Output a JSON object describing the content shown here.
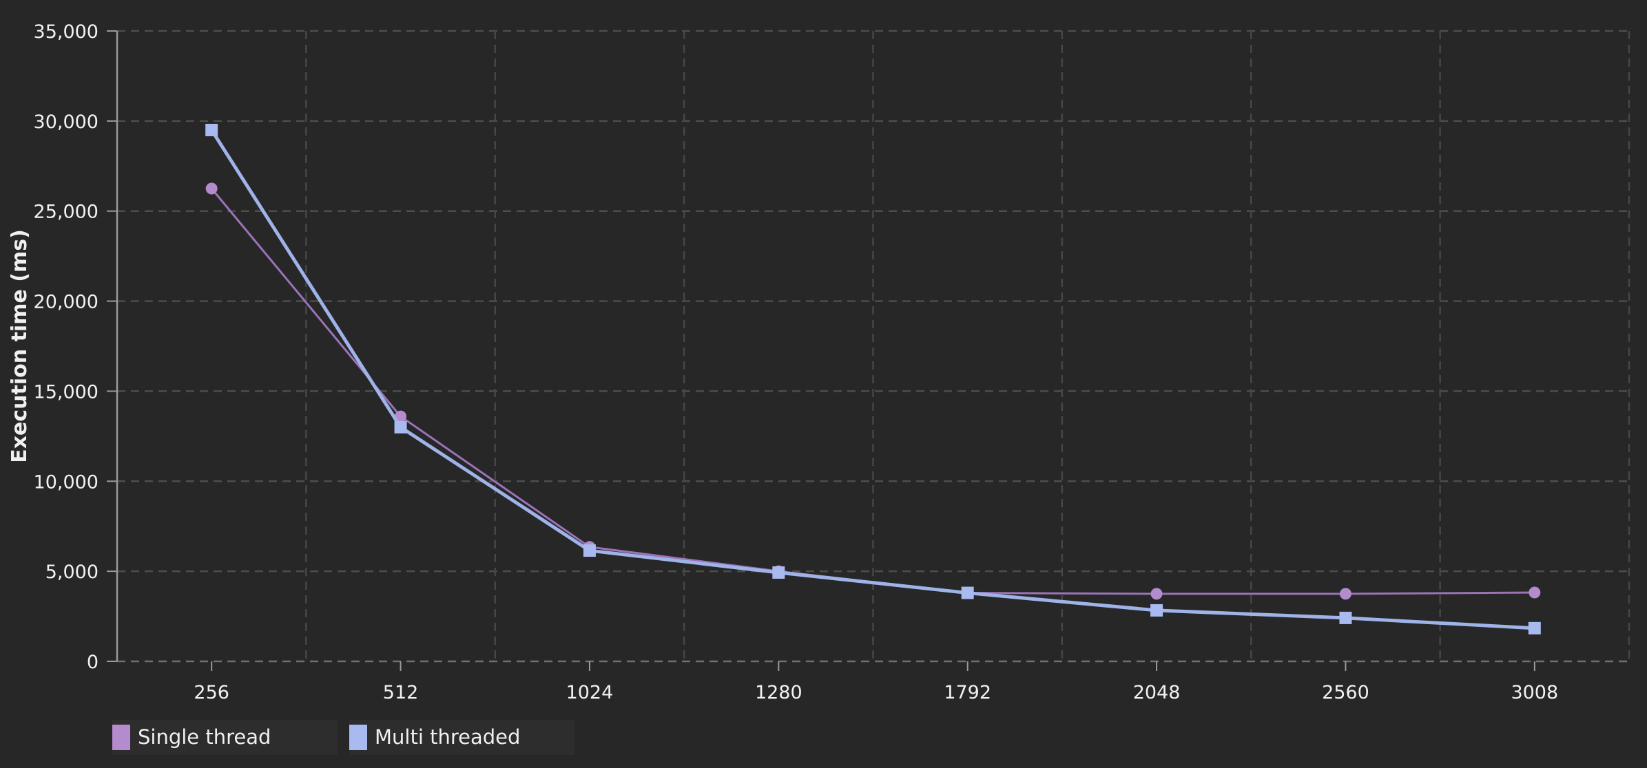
{
  "chart_data": {
    "type": "line",
    "title": "",
    "xlabel": "",
    "ylabel": "Execution time (ms)",
    "categories": [
      "256",
      "512",
      "1024",
      "1280",
      "1792",
      "2048",
      "2560",
      "3008"
    ],
    "ylim": [
      0,
      35000
    ],
    "ytick_step": 5000,
    "ytick_labels": [
      "0",
      "5,000",
      "10,000",
      "15,000",
      "20,000",
      "25,000",
      "30,000",
      "35,000"
    ],
    "grid": true,
    "gridline_style": "dashed",
    "legend_position": "bottom-left",
    "series": [
      {
        "name": "Single thread",
        "marker": "circle",
        "marker_color": "#b48bcd",
        "line_color": "#9a73b8",
        "line_width": 3,
        "values": [
          26250,
          13600,
          6350,
          5000,
          3800,
          3750,
          3750,
          3820
        ]
      },
      {
        "name": "Multi threaded",
        "marker": "square",
        "marker_color": "#a9baf0",
        "line_color": "#9fb3e8",
        "line_width": 5,
        "values": [
          29500,
          13000,
          6150,
          4930,
          3800,
          2830,
          2410,
          1840
        ]
      }
    ]
  },
  "colors": {
    "background": "#272727",
    "grid_h": "#4d4d4d",
    "grid_v": "#464646",
    "baseline": "#6f6f6f",
    "axis": "#9a9a9a",
    "tick_text": "#f2f2f2",
    "axis_title_text": "#f0f0f0",
    "legend_bg": "#2d2d2d"
  }
}
